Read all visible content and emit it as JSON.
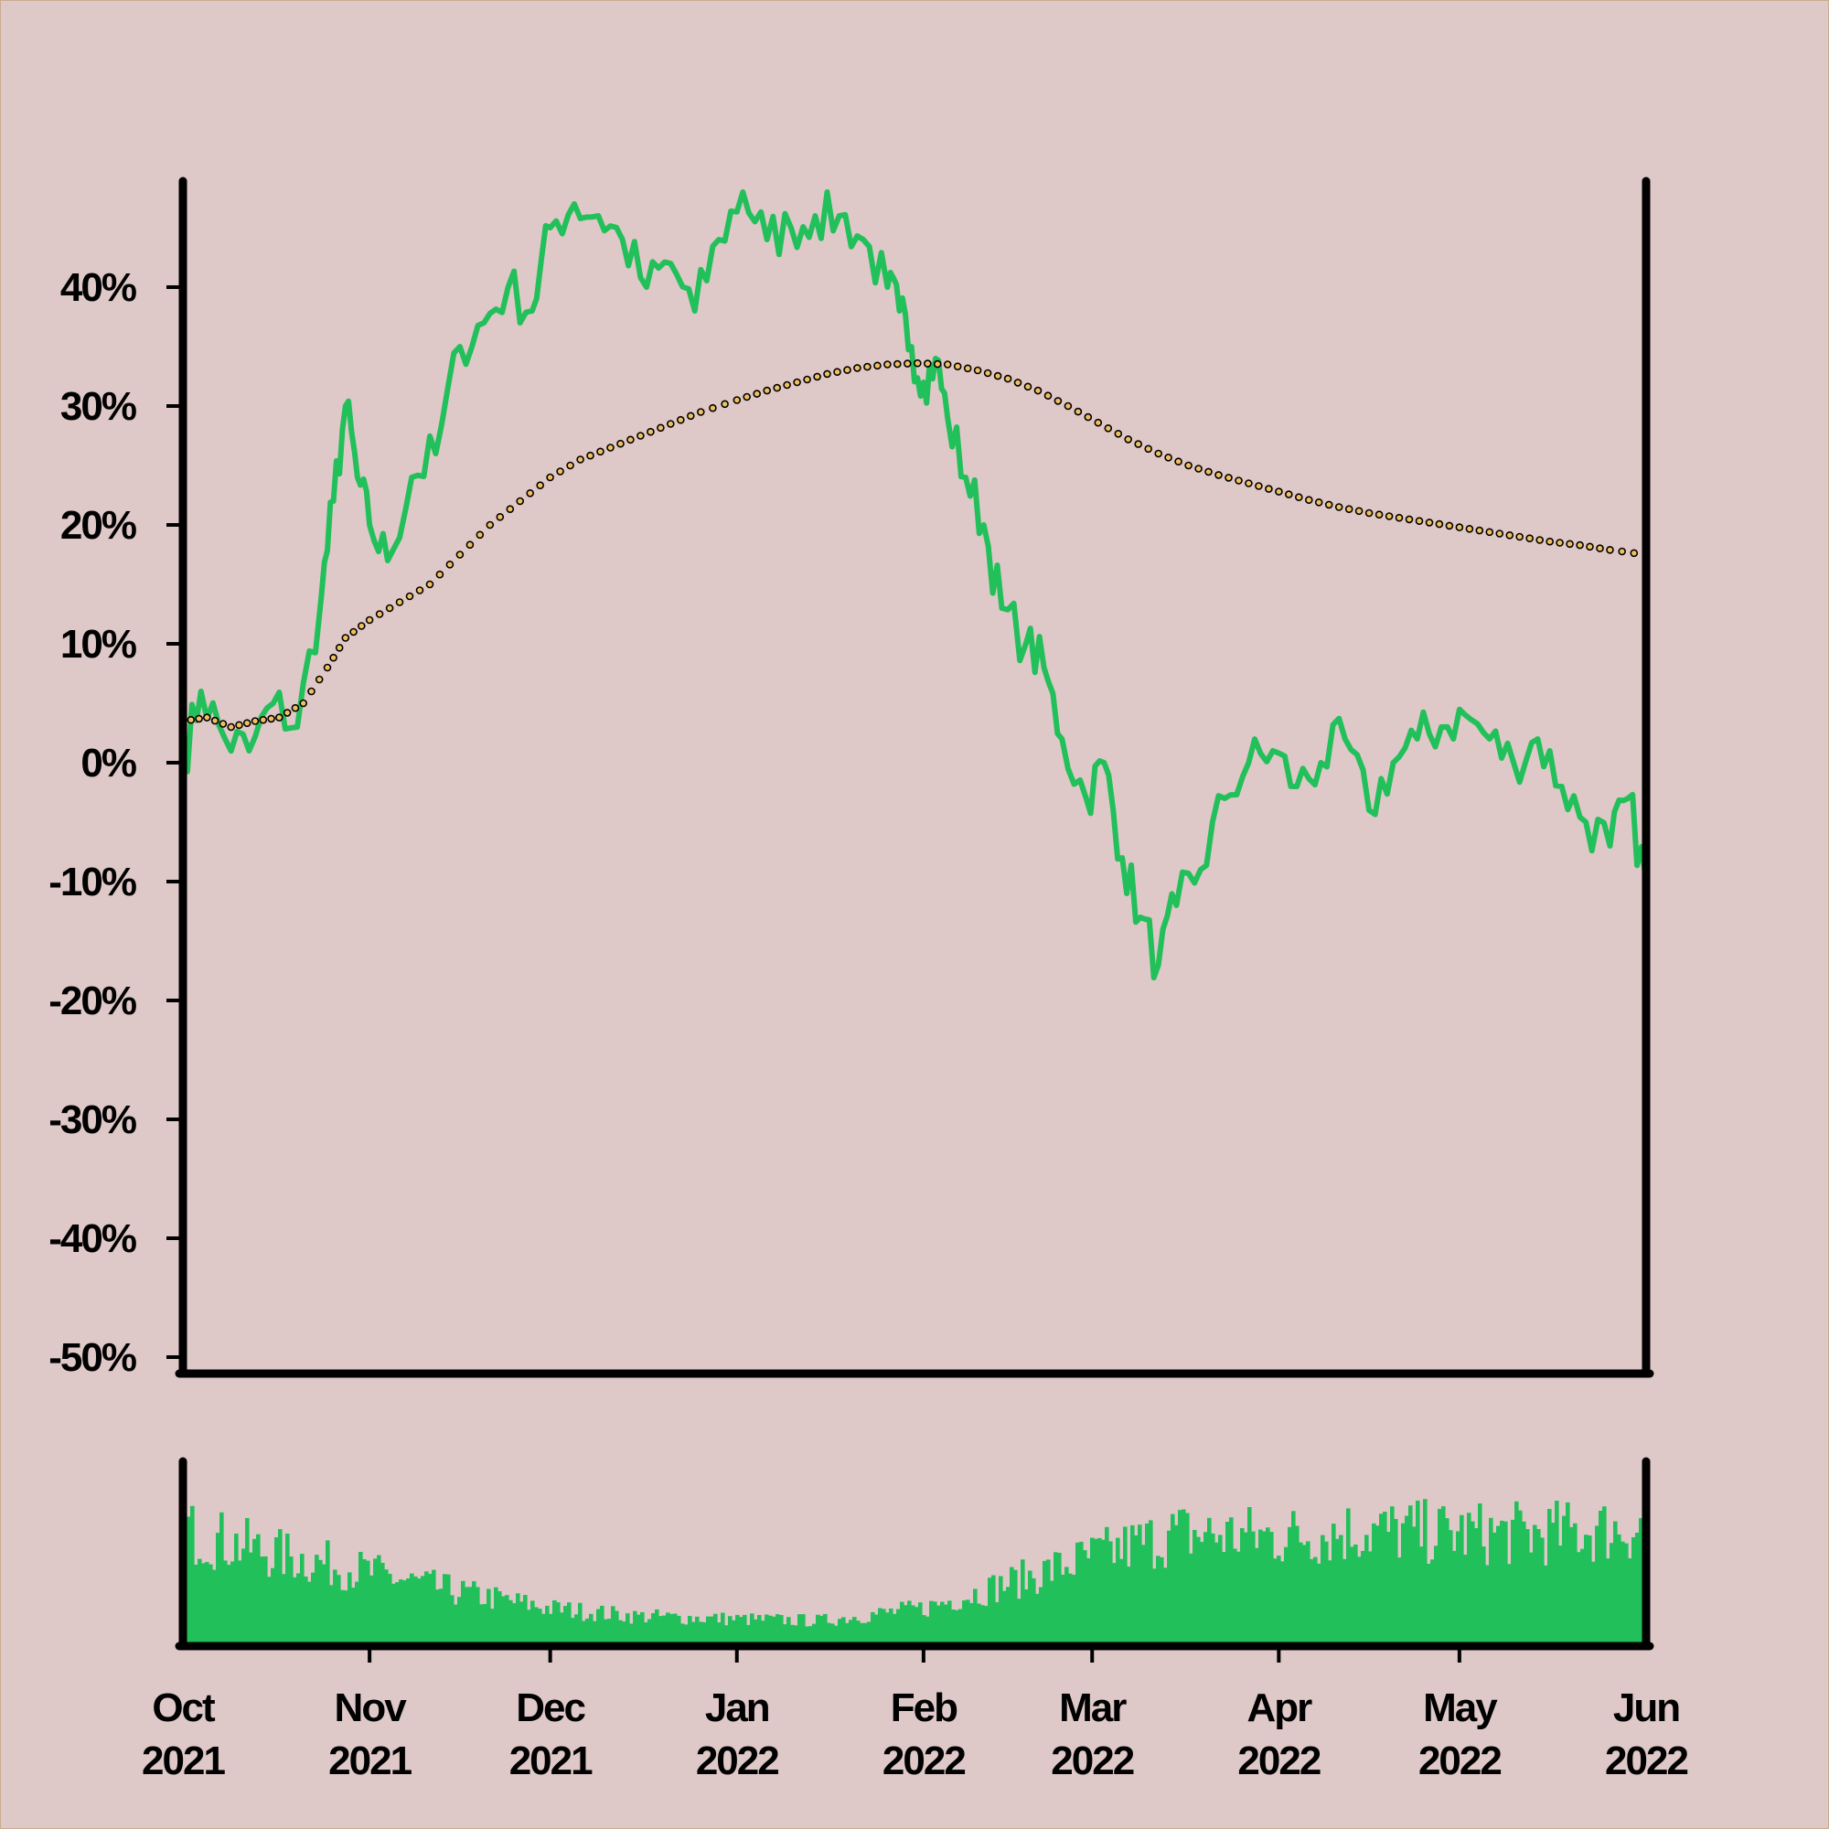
{
  "chart_data": [
    {
      "type": "line",
      "title": "",
      "xlabel": "",
      "ylabel": "",
      "x_range": [
        "2021-10-01",
        "2022-06-01"
      ],
      "ylim": [
        -50,
        50
      ],
      "y_ticks": [
        40,
        30,
        20,
        10,
        0,
        -10,
        -20,
        -30,
        -40,
        -50
      ],
      "y_tick_labels": [
        "40%",
        "30%",
        "20%",
        "10%",
        "0%",
        "-10%",
        "-20%",
        "-30%",
        "-40%",
        "-50%"
      ],
      "grid": false,
      "legend": "none",
      "series": [
        {
          "style": "solid line",
          "color": "#22c05a",
          "x": [
            "2021-10-01",
            "2021-10-04",
            "2021-10-08",
            "2021-10-12",
            "2021-10-16",
            "2021-10-20",
            "2021-10-24",
            "2021-10-26",
            "2021-10-28",
            "2021-10-30",
            "2021-11-01",
            "2021-11-04",
            "2021-11-08",
            "2021-11-12",
            "2021-11-16",
            "2021-11-20",
            "2021-11-24",
            "2021-11-28",
            "2021-12-01",
            "2021-12-05",
            "2021-12-09",
            "2021-12-13",
            "2021-12-17",
            "2021-12-21",
            "2021-12-25",
            "2021-12-29",
            "2022-01-02",
            "2022-01-06",
            "2022-01-10",
            "2022-01-14",
            "2022-01-18",
            "2022-01-22",
            "2022-01-26",
            "2022-01-28",
            "2022-01-30",
            "2022-02-01",
            "2022-02-03",
            "2022-02-05",
            "2022-02-08",
            "2022-02-11",
            "2022-02-14",
            "2022-02-18",
            "2022-02-21",
            "2022-02-24",
            "2022-02-28",
            "2022-03-03",
            "2022-03-06",
            "2022-03-09",
            "2022-03-12",
            "2022-03-15",
            "2022-03-19",
            "2022-03-23",
            "2022-03-27",
            "2022-03-31",
            "2022-04-04",
            "2022-04-08",
            "2022-04-12",
            "2022-04-16",
            "2022-04-20",
            "2022-04-24",
            "2022-04-28",
            "2022-05-02",
            "2022-05-06",
            "2022-05-10",
            "2022-05-14",
            "2022-05-18",
            "2022-05-22",
            "2022-05-26",
            "2022-05-29",
            "2022-06-01"
          ],
          "values": [
            0,
            6,
            2,
            1,
            5,
            3,
            14,
            22,
            30,
            24,
            20,
            17,
            24,
            26,
            35,
            37,
            40,
            38,
            45,
            47,
            46,
            44,
            40,
            42,
            38,
            44,
            48,
            44,
            45,
            46,
            46,
            44,
            40,
            38,
            35,
            32,
            34,
            29,
            24,
            20,
            13,
            10,
            8,
            2,
            -3,
            0,
            -8,
            -13,
            -17,
            -12,
            -9,
            -3,
            0,
            1,
            -2,
            0,
            2,
            -4,
            0,
            2,
            3,
            4,
            2,
            0,
            2,
            -2,
            -5,
            -7,
            -3,
            -10
          ]
        },
        {
          "style": "dotted line (moving average)",
          "color": "#f0c060",
          "x": [
            "2021-10-01",
            "2021-10-05",
            "2021-10-09",
            "2021-10-13",
            "2021-10-17",
            "2021-10-21",
            "2021-10-25",
            "2021-10-28",
            "2021-11-01",
            "2021-11-06",
            "2021-11-11",
            "2021-11-16",
            "2021-11-21",
            "2021-11-26",
            "2021-12-01",
            "2021-12-06",
            "2021-12-11",
            "2021-12-16",
            "2021-12-21",
            "2021-12-26",
            "2022-01-01",
            "2022-01-06",
            "2022-01-11",
            "2022-01-16",
            "2022-01-21",
            "2022-01-26",
            "2022-01-31",
            "2022-02-05",
            "2022-02-10",
            "2022-02-15",
            "2022-02-20",
            "2022-02-25",
            "2022-03-02",
            "2022-03-07",
            "2022-03-12",
            "2022-03-17",
            "2022-03-22",
            "2022-03-27",
            "2022-04-01",
            "2022-04-06",
            "2022-04-11",
            "2022-04-16",
            "2022-04-21",
            "2022-04-26",
            "2022-05-01",
            "2022-05-06",
            "2022-05-11",
            "2022-05-16",
            "2022-05-21",
            "2022-05-26",
            "2022-06-01"
          ],
          "values": [
            3.5,
            3.8,
            3.0,
            3.5,
            3.8,
            5.0,
            8.0,
            10.5,
            12.0,
            13.5,
            15.0,
            17.5,
            20.0,
            22.0,
            24.0,
            25.5,
            26.5,
            27.5,
            28.5,
            29.5,
            30.5,
            31.3,
            32.0,
            32.7,
            33.2,
            33.5,
            33.6,
            33.5,
            33.0,
            32.3,
            31.3,
            30.0,
            28.6,
            27.2,
            26.0,
            25.0,
            24.2,
            23.5,
            22.8,
            22.1,
            21.5,
            21.0,
            20.6,
            20.2,
            19.8,
            19.4,
            19.0,
            18.6,
            18.3,
            17.9,
            17.5
          ]
        }
      ]
    },
    {
      "type": "bar",
      "title": "",
      "color": "#22c05a",
      "grid": false,
      "x_ticks": [
        "2021-10-01",
        "2021-11-01",
        "2021-12-01",
        "2022-01-01",
        "2022-02-01",
        "2022-03-01",
        "2022-04-01",
        "2022-05-01",
        "2022-06-01"
      ],
      "x_tick_labels": [
        [
          "Oct",
          "2021"
        ],
        [
          "Nov",
          "2021"
        ],
        [
          "Dec",
          "2021"
        ],
        [
          "Jan",
          "2022"
        ],
        [
          "Feb",
          "2022"
        ],
        [
          "Mar",
          "2022"
        ],
        [
          "Apr",
          "2022"
        ],
        [
          "May",
          "2022"
        ],
        [
          "Jun",
          "2022"
        ]
      ],
      "envelope_x": [
        "2021-10-01",
        "2021-10-15",
        "2021-11-01",
        "2021-11-15",
        "2021-12-01",
        "2021-12-15",
        "2022-01-01",
        "2022-01-15",
        "2022-02-01",
        "2022-02-15",
        "2022-03-01",
        "2022-03-15",
        "2022-04-01",
        "2022-04-15",
        "2022-05-01",
        "2022-05-15",
        "2022-06-01"
      ],
      "envelope_values": [
        0.72,
        0.58,
        0.45,
        0.33,
        0.22,
        0.17,
        0.15,
        0.14,
        0.22,
        0.38,
        0.55,
        0.7,
        0.68,
        0.72,
        0.7,
        0.7,
        0.74
      ]
    }
  ]
}
